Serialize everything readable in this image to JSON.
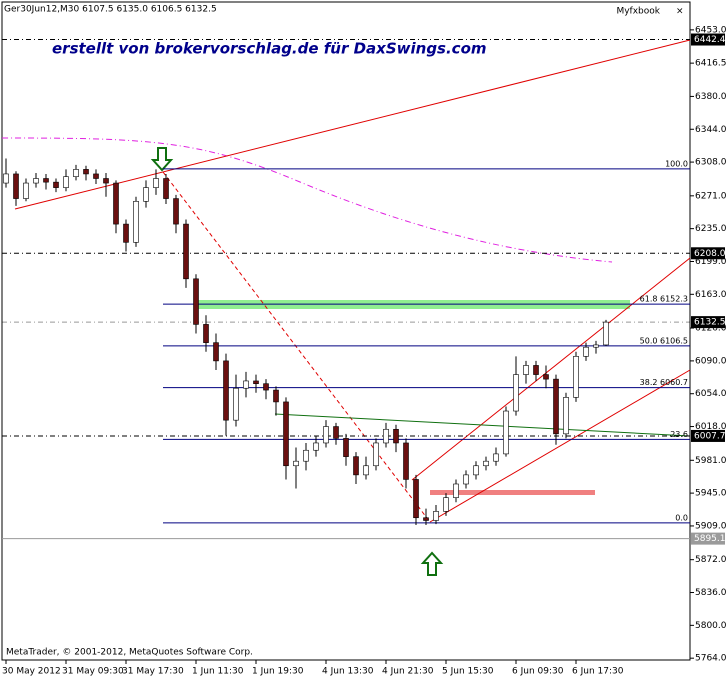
{
  "chart_data": {
    "type": "candlestick",
    "header": "Ger30Jun12,M30  6107.5 6135.0 6106.5 6132.5",
    "brand": "Myfxbook",
    "annotation": "erstellt von brokervorschlag.de für DaxSwings.com",
    "footer": "MetaTrader, © 2001-2012, MetaQuotes Software Corp.",
    "categories": [
      "30 May 2012",
      null,
      null,
      null,
      null,
      null,
      "31 May 09:30",
      null,
      null,
      null,
      null,
      null,
      "31 May 17:30",
      null,
      null,
      null,
      null,
      null,
      null,
      "1 Jun 11:30",
      null,
      null,
      null,
      null,
      null,
      "1 Jun 19:30",
      null,
      null,
      null,
      null,
      null,
      null,
      "4 Jun 13:30",
      null,
      null,
      null,
      null,
      null,
      "4 Jun 21:30",
      null,
      null,
      null,
      null,
      null,
      "5 Jun 15:30",
      null,
      null,
      null,
      null,
      null,
      null,
      "6 Jun 09:30",
      null,
      null,
      null,
      null,
      null,
      "6 Jun 17:30",
      null,
      null,
      null
    ],
    "open": [
      6285,
      6295,
      6268,
      6285,
      6290,
      6286,
      6280,
      6292,
      6300,
      6295,
      6290,
      6285,
      6240,
      6220,
      6265,
      6280,
      6290,
      6268,
      6240,
      6180,
      6130,
      6110,
      6090,
      6025,
      6060,
      6068,
      6065,
      6058,
      6045,
      5975,
      5980,
      5992,
      6000,
      6018,
      6005,
      5985,
      5965,
      5975,
      6000,
      6015,
      6000,
      5960,
      5918,
      5915,
      5925,
      5940,
      5955,
      5965,
      5975,
      5980,
      5988,
      6035,
      6075,
      6085,
      6075,
      6070,
      6010,
      6050,
      6095,
      6105,
      6107.5
    ],
    "high": [
      6312,
      6298,
      6290,
      6296,
      6295,
      6290,
      6300,
      6305,
      6304,
      6300,
      6296,
      6288,
      6245,
      6270,
      6288,
      6300,
      6295,
      6272,
      6245,
      6185,
      6140,
      6120,
      6098,
      6075,
      6078,
      6075,
      6070,
      6062,
      6050,
      5995,
      6000,
      6008,
      6025,
      6022,
      6010,
      5990,
      5985,
      6005,
      6022,
      6020,
      6005,
      5965,
      5928,
      5932,
      5945,
      5960,
      5970,
      5980,
      5985,
      5995,
      6040,
      6095,
      6090,
      6090,
      6085,
      6075,
      6055,
      6100,
      6110,
      6112,
      6135
    ],
    "low": [
      6280,
      6260,
      6265,
      6280,
      6278,
      6275,
      6276,
      6288,
      6288,
      6284,
      6270,
      6230,
      6210,
      6215,
      6258,
      6272,
      6262,
      6230,
      6170,
      6120,
      6100,
      6080,
      6008,
      6018,
      6050,
      6055,
      6048,
      6030,
      5960,
      5950,
      5970,
      5985,
      5995,
      5998,
      5975,
      5955,
      5960,
      5970,
      5995,
      5990,
      5950,
      5910,
      5910,
      5911,
      5920,
      5935,
      5950,
      5960,
      5970,
      5975,
      5985,
      6030,
      6065,
      6068,
      6060,
      5998,
      6005,
      6045,
      6090,
      6098,
      6106.5
    ],
    "close": [
      6295,
      6268,
      6285,
      6290,
      6286,
      6280,
      6292,
      6300,
      6295,
      6290,
      6285,
      6240,
      6220,
      6265,
      6280,
      6290,
      6268,
      6240,
      6180,
      6130,
      6110,
      6090,
      6025,
      6060,
      6068,
      6065,
      6058,
      6045,
      5975,
      5980,
      5992,
      6000,
      6018,
      6005,
      5985,
      5965,
      5975,
      6000,
      6015,
      6000,
      5960,
      5918,
      5915,
      5925,
      5940,
      5955,
      5965,
      5975,
      5980,
      5988,
      6035,
      6075,
      6085,
      6075,
      6070,
      6010,
      6050,
      6095,
      6105,
      6107.5,
      6132.5
    ],
    "up_color": "#ffffff",
    "down_color": "#6b1010",
    "ylim": [
      5762,
      6466
    ],
    "yticks": [
      {
        "value": 6453,
        "label": "6453.0"
      },
      {
        "value": 6416.5,
        "label": "6416.5"
      },
      {
        "value": 6380,
        "label": "6380.0"
      },
      {
        "value": 6344,
        "label": "6344.0"
      },
      {
        "value": 6308,
        "label": "6308.0"
      },
      {
        "value": 6271,
        "label": "6271.0"
      },
      {
        "value": 6235,
        "label": "6235.0"
      },
      {
        "value": 6199,
        "label": "6199.0"
      },
      {
        "value": 6163,
        "label": "6163.0"
      },
      {
        "value": 6126,
        "label": "6126.0"
      },
      {
        "value": 6090,
        "label": "6090.0"
      },
      {
        "value": 6054,
        "label": "6054.0"
      },
      {
        "value": 6018,
        "label": "6018.0"
      },
      {
        "value": 5981,
        "label": "5981.0"
      },
      {
        "value": 5945,
        "label": "5945.0"
      },
      {
        "value": 5909,
        "label": "5909.0"
      },
      {
        "value": 5872,
        "label": "5872.0"
      },
      {
        "value": 5836,
        "label": "5836.0"
      },
      {
        "value": 5800,
        "label": "5800.0"
      },
      {
        "value": 5764,
        "label": "5764.0"
      }
    ],
    "fib_levels": [
      {
        "value": 6300.5,
        "label": "100.0"
      },
      {
        "value": 6152.3,
        "label": "61.8 6152.3"
      },
      {
        "value": 6106.5,
        "label": "50.0 6106.5"
      },
      {
        "value": 6060.7,
        "label": "38.2 6060.7"
      },
      {
        "value": 6004,
        "label": "23.6"
      },
      {
        "value": 5912.4,
        "label": "0.0"
      }
    ],
    "price_markers": [
      {
        "value": 6442.4,
        "label": "6442.4",
        "color": "#000000"
      },
      {
        "value": 6208,
        "label": "6208.0",
        "color": "#000000"
      },
      {
        "value": 6132.5,
        "label": "6132.5",
        "color": "#000000"
      },
      {
        "value": 6007.7,
        "label": "6007.7",
        "color": "#000000"
      },
      {
        "value": 5895.1,
        "label": "5895.1",
        "color": "#9a9a9a"
      }
    ]
  }
}
